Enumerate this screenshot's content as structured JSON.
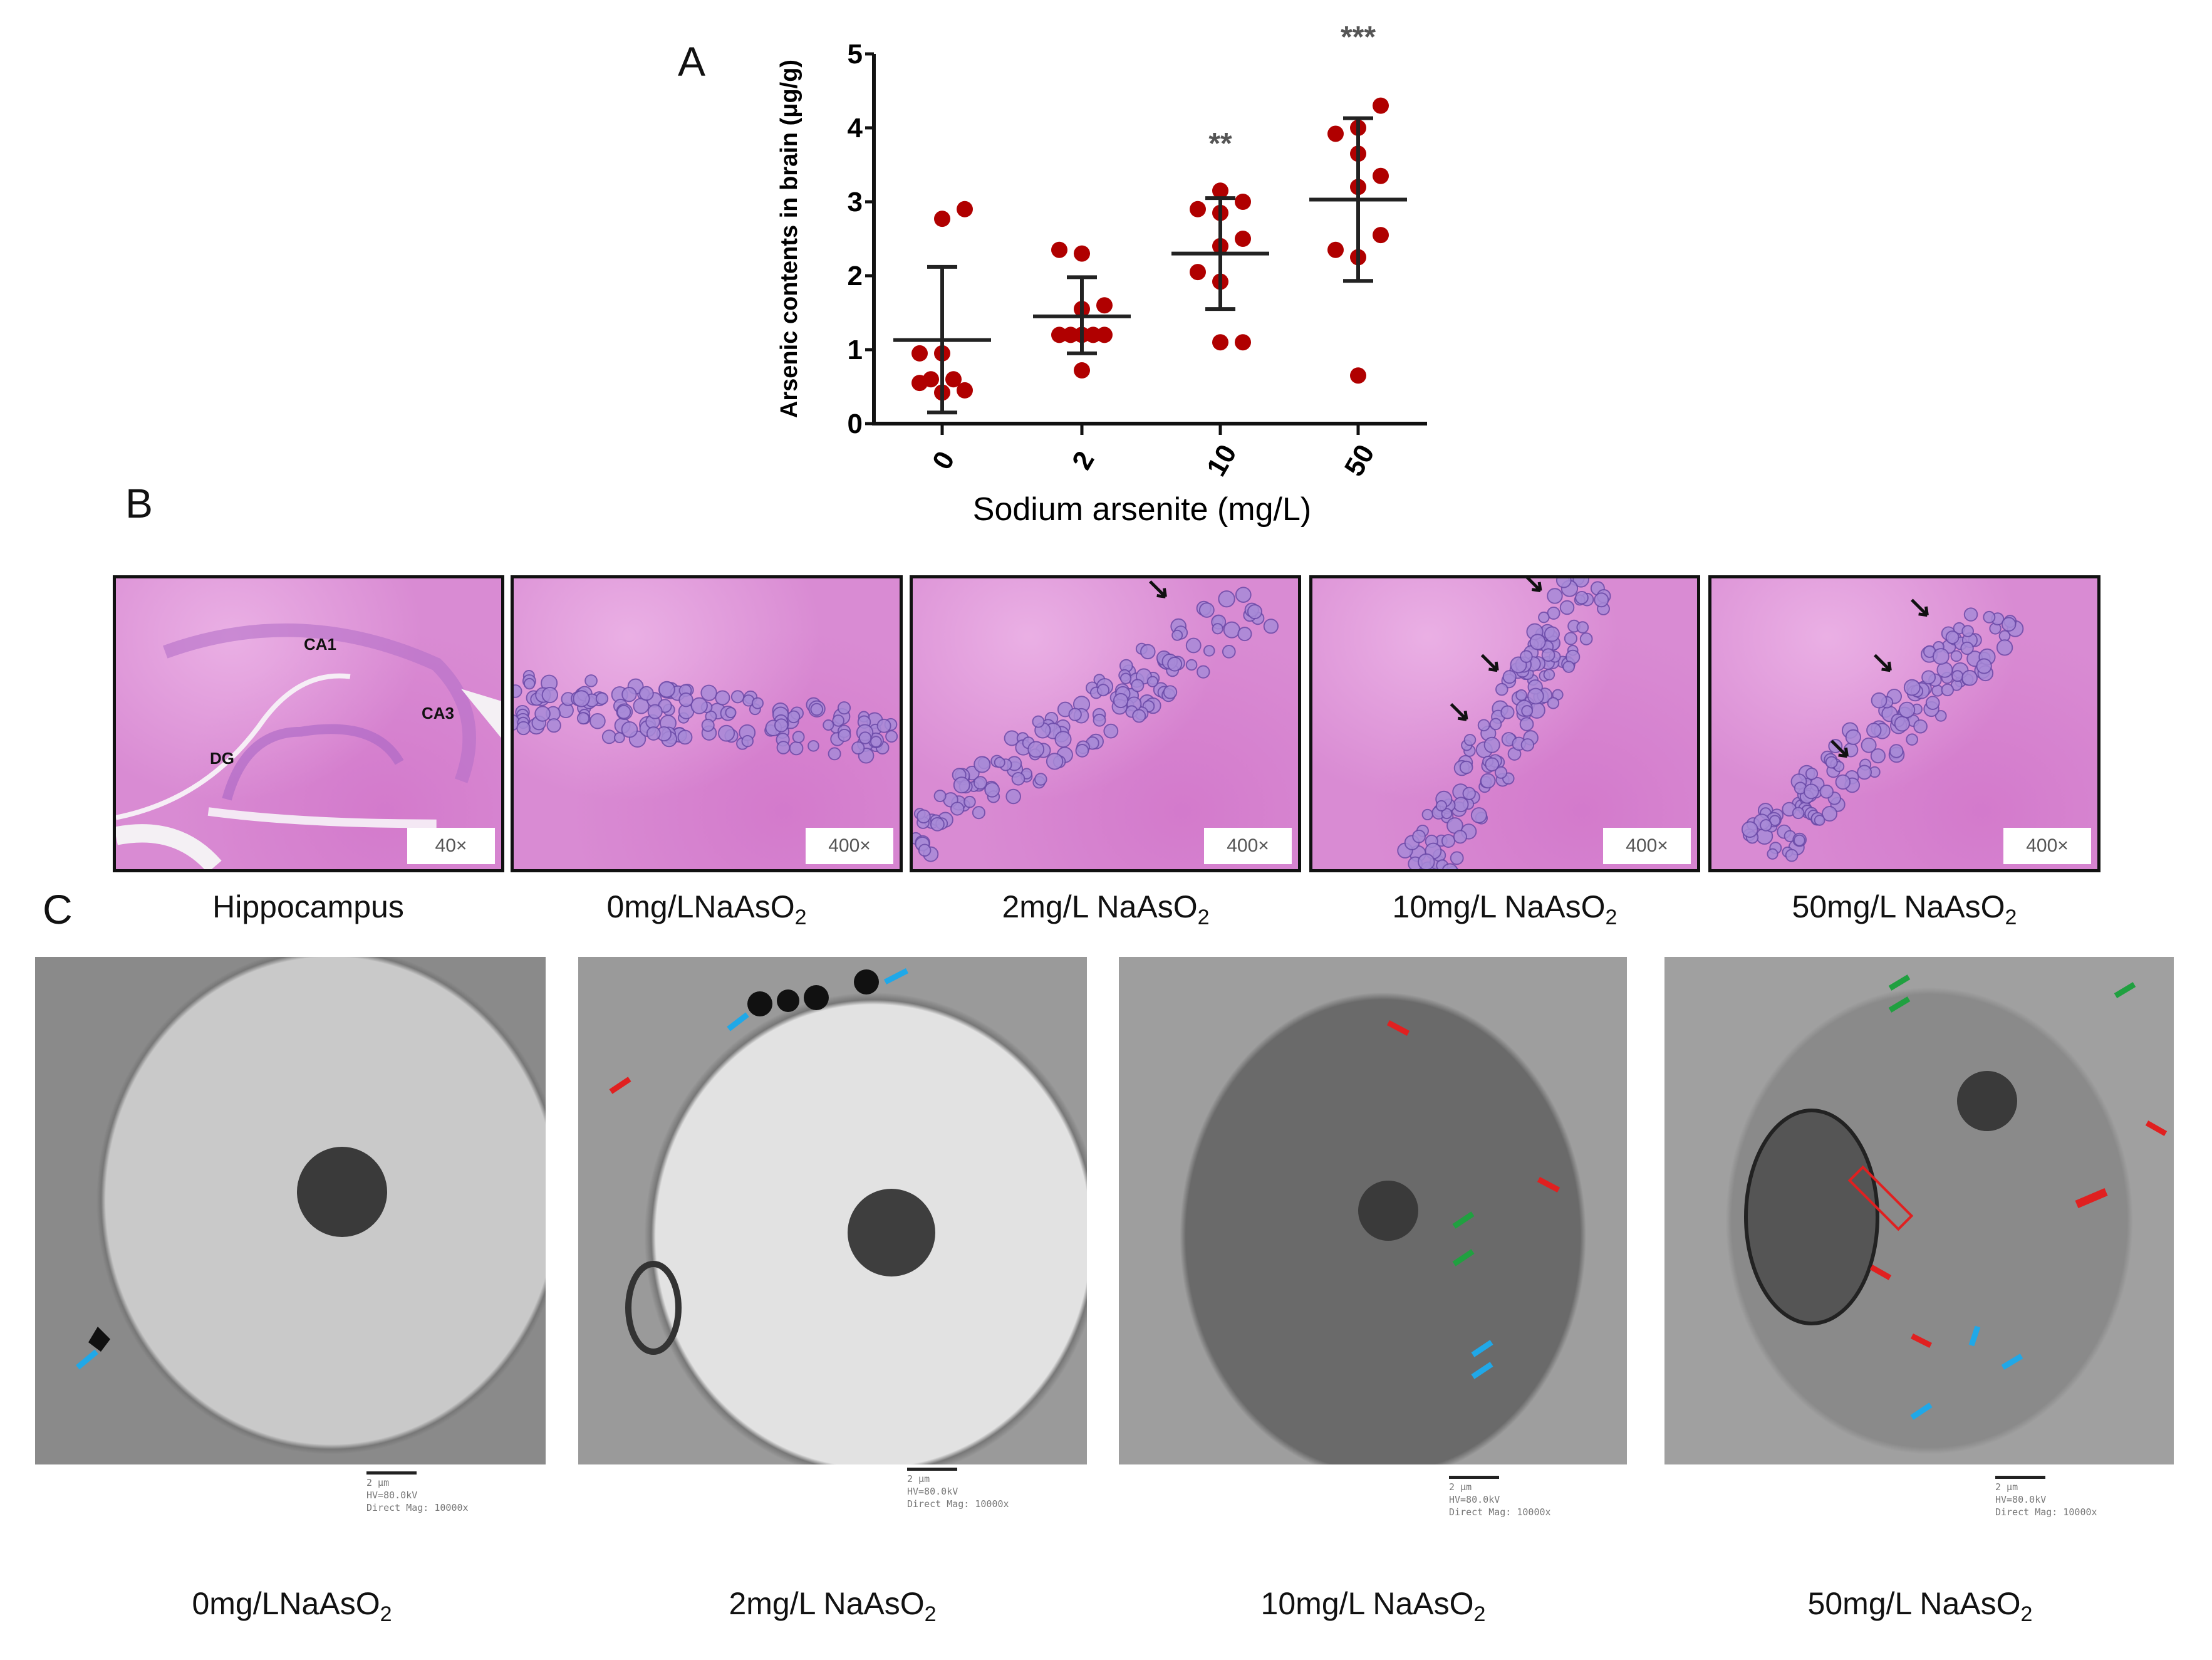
{
  "panels": {
    "a": "A",
    "b": "B",
    "c": "C"
  },
  "chart_data": {
    "type": "scatter",
    "xlabel": "Sodium arsenite (mg/L)",
    "ylabel": "Arsenic contents in brain (μg/g)",
    "categories": [
      "0",
      "2",
      "10",
      "50"
    ],
    "ylim": [
      0,
      5
    ],
    "yticks": [
      "0",
      "1",
      "2",
      "3",
      "4",
      "5"
    ],
    "grid": false,
    "point_color": "#b00000",
    "groups": [
      {
        "values": [
          2.9,
          2.77,
          0.95,
          0.95,
          0.6,
          0.6,
          0.55,
          0.45,
          0.42
        ],
        "mean": 1.13,
        "err_low": 0.15,
        "err_high": 2.12,
        "significance": ""
      },
      {
        "values": [
          2.35,
          2.3,
          1.6,
          1.55,
          1.2,
          1.2,
          1.2,
          1.2,
          1.2,
          0.72
        ],
        "mean": 1.45,
        "err_low": 0.95,
        "err_high": 1.98,
        "significance": ""
      },
      {
        "values": [
          3.15,
          3.0,
          2.9,
          2.85,
          2.5,
          2.4,
          2.05,
          1.92,
          1.1,
          1.1
        ],
        "mean": 2.3,
        "err_low": 1.55,
        "err_high": 3.05,
        "significance": "**"
      },
      {
        "values": [
          4.3,
          4.0,
          3.92,
          3.65,
          3.35,
          3.2,
          2.55,
          2.35,
          2.25,
          0.65
        ],
        "mean": 3.03,
        "err_low": 1.93,
        "err_high": 4.13,
        "significance": "***"
      }
    ]
  },
  "histology": {
    "regions": {
      "ca1": "CA1",
      "ca3": "CA3",
      "dg": "DG"
    },
    "images": [
      {
        "magnification": "40×",
        "caption": {
          "text": "Hippocampus",
          "sub": ""
        }
      },
      {
        "magnification": "400×",
        "caption": {
          "text": "0mg/LNaAsO",
          "sub": "2"
        }
      },
      {
        "magnification": "400×",
        "caption": {
          "text": "2mg/L NaAsO",
          "sub": "2"
        }
      },
      {
        "magnification": "400×",
        "caption": {
          "text": "10mg/L NaAsO",
          "sub": "2"
        }
      },
      {
        "magnification": "400×",
        "caption": {
          "text": "50mg/L NaAsO",
          "sub": "2"
        }
      }
    ]
  },
  "electron_microscopy": {
    "scale_bar": "2 μm",
    "hv": "HV=80.0kV",
    "mag": "Direct Mag: 10000x",
    "arrow_colors": {
      "red": "#e02020",
      "blue": "#20a8e8",
      "green": "#20a040"
    },
    "images": [
      {
        "caption": {
          "text": "0mg/LNaAsO",
          "sub": "2"
        }
      },
      {
        "caption": {
          "text": "2mg/L NaAsO",
          "sub": "2"
        }
      },
      {
        "caption": {
          "text": "10mg/L NaAsO",
          "sub": "2"
        }
      },
      {
        "caption": {
          "text": "50mg/L NaAsO",
          "sub": "2"
        }
      }
    ]
  }
}
